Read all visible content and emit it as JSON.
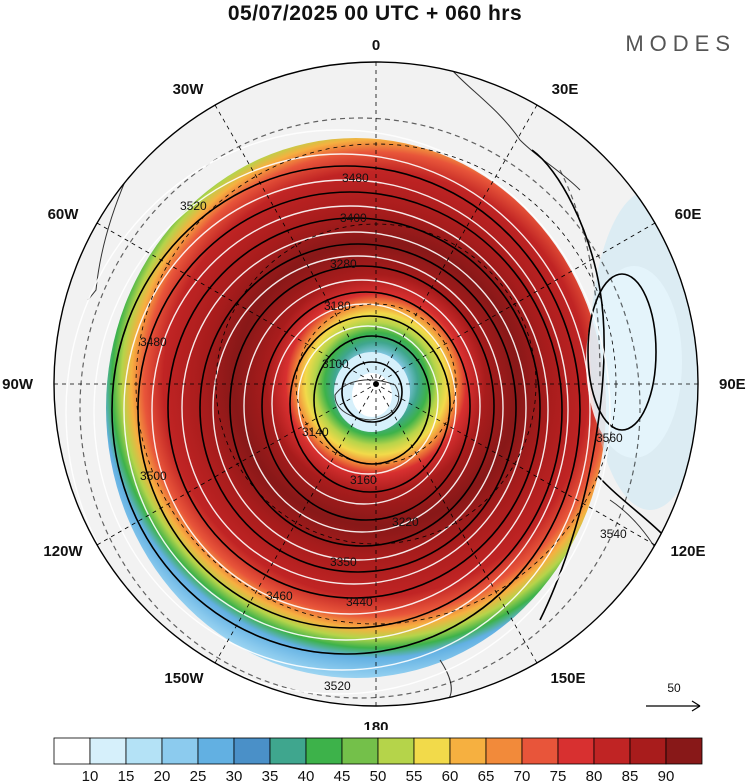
{
  "header": {
    "title": "05/07/2025  00 UTC  + 060 hrs",
    "brand": "MODES"
  },
  "map": {
    "projection": "south-polar-stereographic",
    "longitude_labels": [
      {
        "text": "0",
        "lon": 0
      },
      {
        "text": "30E",
        "lon": 30
      },
      {
        "text": "60E",
        "lon": 60
      },
      {
        "text": "90E",
        "lon": 90
      },
      {
        "text": "120E",
        "lon": 120
      },
      {
        "text": "150E",
        "lon": 150
      },
      {
        "text": "180",
        "lon": 180
      },
      {
        "text": "150W",
        "lon": -150
      },
      {
        "text": "120W",
        "lon": -120
      },
      {
        "text": "90W",
        "lon": -90
      },
      {
        "text": "60W",
        "lon": -60
      },
      {
        "text": "30W",
        "lon": -30
      }
    ],
    "contour_labels": [
      "3480",
      "3400",
      "3280",
      "3180",
      "3100",
      "3140",
      "3160",
      "3220",
      "3350",
      "3440",
      "3460",
      "3520",
      "3540",
      "3560",
      "3500",
      "3480",
      "3520"
    ],
    "wind_reference": "50",
    "colors": {
      "ocean": "#f2f2f2",
      "coast": "#333333"
    }
  },
  "colorbar": {
    "levels": [
      "10",
      "15",
      "20",
      "25",
      "30",
      "35",
      "40",
      "45",
      "50",
      "55",
      "60",
      "65",
      "70",
      "75",
      "80",
      "85",
      "90"
    ],
    "colors": [
      "#ffffff",
      "#d6f0fb",
      "#b4e2f6",
      "#8ccbee",
      "#62b0e2",
      "#4a90c8",
      "#3fa68e",
      "#3db24a",
      "#74c04a",
      "#b5d44a",
      "#f2da4a",
      "#f6b040",
      "#f28a3a",
      "#e8553a",
      "#d83030",
      "#c02424",
      "#a81c1c",
      "#881818"
    ]
  }
}
